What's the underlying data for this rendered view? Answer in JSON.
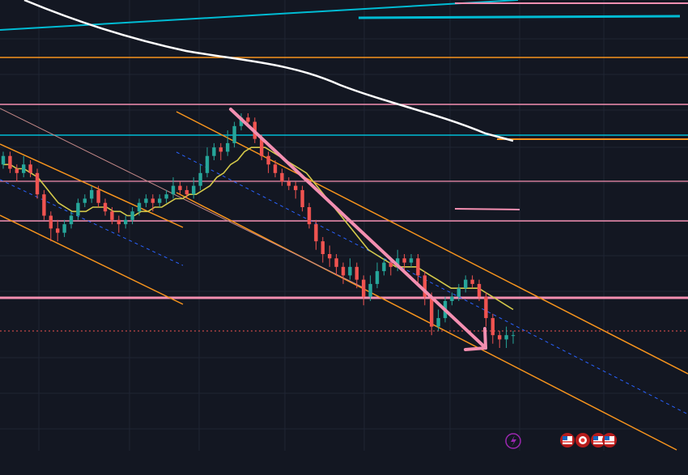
{
  "chart_data": {
    "type": "candlestick",
    "title": "",
    "xlabel": "",
    "ylabel": "",
    "ylim": [
      0,
      100
    ],
    "grid": true,
    "colors": {
      "background": "#131722",
      "up": "#26a69a",
      "down": "#ef5350",
      "ma_fast": "#d4c94a",
      "ma_slow": "#ffffff",
      "channel": "#f7941d",
      "horizontal_pink": "#f48fb1",
      "horizontal_cyan": "#00bcd4",
      "arrow": "#f48fb1",
      "midline": "#2962ff"
    },
    "candles": [
      {
        "o": 88,
        "c": 90,
        "h": 91,
        "l": 87
      },
      {
        "o": 90,
        "c": 87,
        "h": 91,
        "l": 86
      },
      {
        "o": 87,
        "c": 86,
        "h": 88,
        "l": 84
      },
      {
        "o": 86,
        "c": 88,
        "h": 90,
        "l": 85
      },
      {
        "o": 88,
        "c": 86,
        "h": 89,
        "l": 85
      },
      {
        "o": 86,
        "c": 81,
        "h": 87,
        "l": 80
      },
      {
        "o": 81,
        "c": 76,
        "h": 82,
        "l": 75
      },
      {
        "o": 76,
        "c": 73,
        "h": 77,
        "l": 70
      },
      {
        "o": 73,
        "c": 72,
        "h": 75,
        "l": 70
      },
      {
        "o": 72,
        "c": 74,
        "h": 75,
        "l": 71
      },
      {
        "o": 74,
        "c": 76,
        "h": 77,
        "l": 73
      },
      {
        "o": 76,
        "c": 79,
        "h": 80,
        "l": 75
      },
      {
        "o": 79,
        "c": 80,
        "h": 81,
        "l": 78
      },
      {
        "o": 80,
        "c": 82,
        "h": 83,
        "l": 79
      },
      {
        "o": 82,
        "c": 79,
        "h": 83,
        "l": 78
      },
      {
        "o": 79,
        "c": 77,
        "h": 80,
        "l": 76
      },
      {
        "o": 77,
        "c": 75,
        "h": 78,
        "l": 74
      },
      {
        "o": 75,
        "c": 74,
        "h": 76,
        "l": 72
      },
      {
        "o": 74,
        "c": 75,
        "h": 76,
        "l": 73
      },
      {
        "o": 75,
        "c": 77,
        "h": 78,
        "l": 74
      },
      {
        "o": 77,
        "c": 79,
        "h": 80,
        "l": 76
      },
      {
        "o": 79,
        "c": 80,
        "h": 81,
        "l": 78
      },
      {
        "o": 80,
        "c": 79,
        "h": 81,
        "l": 77
      },
      {
        "o": 79,
        "c": 80,
        "h": 81,
        "l": 78
      },
      {
        "o": 80,
        "c": 81,
        "h": 82,
        "l": 79
      },
      {
        "o": 81,
        "c": 83,
        "h": 85,
        "l": 80
      },
      {
        "o": 83,
        "c": 82,
        "h": 84,
        "l": 81
      },
      {
        "o": 82,
        "c": 81,
        "h": 83,
        "l": 80
      },
      {
        "o": 81,
        "c": 83,
        "h": 85,
        "l": 80
      },
      {
        "o": 83,
        "c": 86,
        "h": 88,
        "l": 82
      },
      {
        "o": 86,
        "c": 90,
        "h": 92,
        "l": 85
      },
      {
        "o": 90,
        "c": 92,
        "h": 93,
        "l": 89
      },
      {
        "o": 92,
        "c": 91,
        "h": 93,
        "l": 89
      },
      {
        "o": 91,
        "c": 93,
        "h": 96,
        "l": 90
      },
      {
        "o": 93,
        "c": 97,
        "h": 98,
        "l": 92
      },
      {
        "o": 97,
        "c": 99,
        "h": 100,
        "l": 96
      },
      {
        "o": 99,
        "c": 98,
        "h": 100,
        "l": 97
      },
      {
        "o": 98,
        "c": 94,
        "h": 99,
        "l": 93
      },
      {
        "o": 94,
        "c": 90,
        "h": 95,
        "l": 89
      },
      {
        "o": 90,
        "c": 88,
        "h": 91,
        "l": 86
      },
      {
        "o": 88,
        "c": 86,
        "h": 89,
        "l": 85
      },
      {
        "o": 86,
        "c": 84,
        "h": 87,
        "l": 83
      },
      {
        "o": 84,
        "c": 83,
        "h": 85,
        "l": 82
      },
      {
        "o": 83,
        "c": 82,
        "h": 84,
        "l": 80
      },
      {
        "o": 82,
        "c": 78,
        "h": 83,
        "l": 77
      },
      {
        "o": 78,
        "c": 74,
        "h": 79,
        "l": 73
      },
      {
        "o": 74,
        "c": 70,
        "h": 75,
        "l": 68
      },
      {
        "o": 70,
        "c": 67,
        "h": 71,
        "l": 65
      },
      {
        "o": 67,
        "c": 66,
        "h": 69,
        "l": 64
      },
      {
        "o": 66,
        "c": 64,
        "h": 67,
        "l": 62
      },
      {
        "o": 64,
        "c": 62,
        "h": 65,
        "l": 60
      },
      {
        "o": 62,
        "c": 64,
        "h": 66,
        "l": 61
      },
      {
        "o": 64,
        "c": 61,
        "h": 65,
        "l": 59
      },
      {
        "o": 61,
        "c": 57,
        "h": 62,
        "l": 55
      },
      {
        "o": 57,
        "c": 60,
        "h": 62,
        "l": 56
      },
      {
        "o": 60,
        "c": 63,
        "h": 65,
        "l": 59
      },
      {
        "o": 63,
        "c": 65,
        "h": 66,
        "l": 62
      },
      {
        "o": 65,
        "c": 64,
        "h": 66,
        "l": 62
      },
      {
        "o": 64,
        "c": 66,
        "h": 68,
        "l": 63
      },
      {
        "o": 66,
        "c": 65,
        "h": 67,
        "l": 63
      },
      {
        "o": 65,
        "c": 66,
        "h": 67,
        "l": 64
      },
      {
        "o": 66,
        "c": 62,
        "h": 67,
        "l": 60
      },
      {
        "o": 62,
        "c": 57,
        "h": 63,
        "l": 55
      },
      {
        "o": 57,
        "c": 50,
        "h": 58,
        "l": 48
      },
      {
        "o": 50,
        "c": 52,
        "h": 54,
        "l": 49
      },
      {
        "o": 52,
        "c": 56,
        "h": 57,
        "l": 51
      },
      {
        "o": 56,
        "c": 57,
        "h": 58,
        "l": 55
      },
      {
        "o": 57,
        "c": 59,
        "h": 60,
        "l": 56
      },
      {
        "o": 59,
        "c": 61,
        "h": 62,
        "l": 58
      },
      {
        "o": 61,
        "c": 60,
        "h": 62,
        "l": 59
      },
      {
        "o": 60,
        "c": 57,
        "h": 61,
        "l": 56
      },
      {
        "o": 57,
        "c": 52,
        "h": 58,
        "l": 50
      },
      {
        "o": 52,
        "c": 48,
        "h": 53,
        "l": 46
      },
      {
        "o": 48,
        "c": 47,
        "h": 49,
        "l": 45
      },
      {
        "o": 47,
        "c": 48,
        "h": 50,
        "l": 45
      },
      {
        "o": 48,
        "c": 48,
        "h": 49,
        "l": 46
      }
    ],
    "moving_average_fast": [
      88,
      88,
      87,
      87,
      86,
      85,
      83,
      81,
      79,
      78,
      77,
      77,
      77,
      78,
      78,
      78,
      77,
      77,
      76,
      76,
      77,
      77,
      78,
      78,
      79,
      80,
      80,
      81,
      81,
      82,
      83,
      85,
      86,
      88,
      89,
      91,
      92,
      92,
      92,
      91,
      90,
      89,
      88,
      87,
      86,
      84,
      82,
      80,
      78,
      76,
      74,
      72,
      70,
      68,
      67,
      66,
      65,
      64,
      64,
      64,
      64,
      63,
      62,
      61,
      60,
      59,
      59,
      59,
      59,
      59,
      58,
      57,
      56,
      55,
      54
    ]
  },
  "indicators": {
    "event_bolt": "lightning-icon",
    "flags": [
      "flag-icon",
      "flag-icon",
      "flag-icon",
      "flag-icon"
    ]
  }
}
